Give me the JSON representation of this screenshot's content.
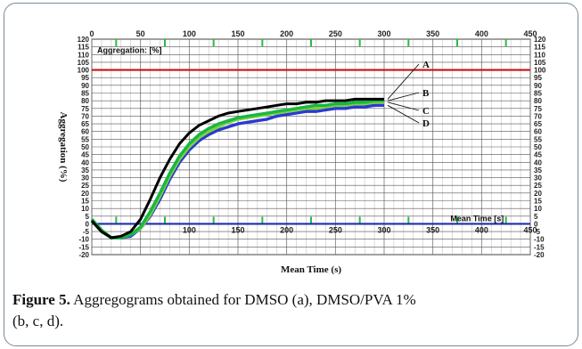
{
  "chart_data": {
    "type": "line",
    "title": "",
    "inner_title": "Aggregation: [%]",
    "xlabel": "Mean Time (s)",
    "ylabel": "Aggregation (%)",
    "x_axis_inner_label": "Mean Time [s]",
    "xlim": [
      0,
      450
    ],
    "ylim": [
      -20,
      120
    ],
    "x_ticks": [
      0,
      50,
      100,
      150,
      200,
      250,
      300,
      350,
      400,
      450
    ],
    "x_ticks_bottom_inner": [
      100,
      150,
      200,
      250,
      300,
      350,
      400,
      450
    ],
    "y_ticks": [
      120,
      115,
      110,
      105,
      100,
      95,
      90,
      85,
      80,
      75,
      70,
      65,
      60,
      55,
      50,
      45,
      40,
      35,
      30,
      25,
      20,
      15,
      10,
      5,
      0,
      -5,
      -10,
      -15,
      -20
    ],
    "y_ticks_right": [
      "120",
      "115",
      "110",
      "105",
      "100",
      "95",
      "90",
      "85",
      "80",
      "75",
      "70",
      "65",
      "60",
      "55",
      "50",
      "45",
      "40",
      "35",
      "30",
      "25",
      "20",
      "15",
      "10",
      "5",
      "0",
      "-5",
      "-10",
      "-15",
      "-20"
    ],
    "y_ticks_left": [
      "120",
      "115",
      "110",
      "105",
      "100",
      "95",
      "90",
      "85",
      "80",
      "75",
      "70",
      "65",
      "60",
      "55",
      "50",
      "45",
      "40",
      "35",
      "30",
      "25",
      "20",
      "15",
      "10",
      "5",
      "0",
      "-5",
      "-10",
      "-15",
      "-20"
    ],
    "reference_lines": [
      {
        "y": 100,
        "color": "#cc1111"
      },
      {
        "y": 0,
        "color": "#1f2fa8"
      }
    ],
    "grid": true,
    "series": [
      {
        "name": "A",
        "color": "#000000",
        "x": [
          0,
          10,
          20,
          30,
          40,
          50,
          60,
          70,
          80,
          90,
          100,
          110,
          120,
          130,
          140,
          150,
          160,
          170,
          180,
          190,
          200,
          210,
          220,
          230,
          240,
          250,
          260,
          270,
          280,
          290,
          300
        ],
        "y": [
          2,
          -5,
          -9,
          -8,
          -5,
          3,
          16,
          30,
          42,
          52,
          59,
          64,
          67,
          70,
          72,
          73,
          74,
          75,
          76,
          77,
          78,
          78,
          79,
          79,
          80,
          80,
          80,
          81,
          81,
          81,
          81
        ]
      },
      {
        "name": "B",
        "color": "#18b840",
        "x": [
          0,
          10,
          20,
          30,
          40,
          50,
          60,
          70,
          80,
          90,
          100,
          110,
          120,
          130,
          140,
          150,
          160,
          170,
          180,
          190,
          200,
          210,
          220,
          230,
          240,
          250,
          260,
          270,
          280,
          290,
          300
        ],
        "y": [
          3,
          -4,
          -9,
          -9,
          -7,
          -2,
          8,
          20,
          33,
          44,
          52,
          58,
          62,
          65,
          67,
          69,
          70,
          71,
          72,
          73,
          74,
          75,
          76,
          77,
          77,
          78,
          78,
          79,
          79,
          80,
          80
        ]
      },
      {
        "name": "C",
        "color": "#80d040",
        "x": [
          0,
          10,
          20,
          30,
          40,
          50,
          60,
          70,
          80,
          90,
          100,
          110,
          120,
          130,
          140,
          150,
          160,
          170,
          180,
          190,
          200,
          210,
          220,
          230,
          240,
          250,
          260,
          270,
          280,
          290,
          300
        ],
        "y": [
          2,
          -5,
          -9,
          -9,
          -7,
          -3,
          6,
          18,
          31,
          42,
          50,
          56,
          60,
          63,
          66,
          68,
          69,
          70,
          71,
          72,
          73,
          74,
          75,
          75,
          76,
          77,
          77,
          78,
          78,
          79,
          79
        ]
      },
      {
        "name": "D",
        "color": "#2a3ad0",
        "x": [
          0,
          10,
          20,
          30,
          40,
          50,
          60,
          70,
          80,
          90,
          100,
          110,
          120,
          130,
          140,
          150,
          160,
          170,
          180,
          190,
          200,
          210,
          220,
          230,
          240,
          250,
          260,
          270,
          280,
          290,
          300
        ],
        "y": [
          2,
          -5,
          -9,
          -9,
          -8,
          -3,
          5,
          16,
          29,
          40,
          48,
          54,
          58,
          61,
          63,
          65,
          66,
          67,
          68,
          70,
          71,
          72,
          73,
          73,
          74,
          75,
          75,
          76,
          76,
          77,
          77
        ]
      }
    ],
    "annotations": [
      "A",
      "B",
      "C",
      "D"
    ]
  },
  "caption": {
    "label": "Figure 5.",
    "text_line1": " Aggregograms obtained for DMSO (a), DMSO/PVA 1%",
    "text_line2": "(b, c, d)."
  }
}
